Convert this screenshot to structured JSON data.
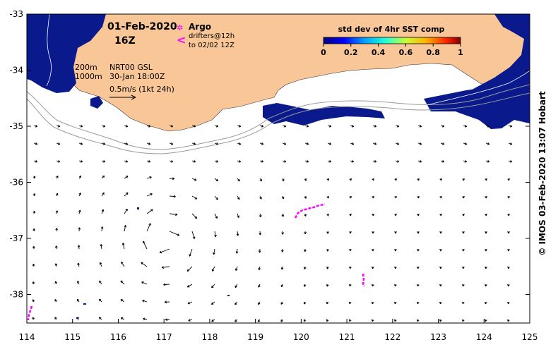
{
  "map": {
    "date_title": "01-Feb-2020",
    "time_title": "16Z",
    "legend": {
      "argo_symbol": "✲",
      "argo_label": "Argo",
      "drifter_symbol": "<",
      "drifter_label_1": "drifters@12h",
      "drifter_label_2": "to 02/02 12Z"
    },
    "contours_200m": "200m",
    "contours_1000m": "1000m",
    "product": "NRT00 GSL",
    "product_time": "30-Jan 18:00Z",
    "scale_text": "0.5m/s (1kt 24h)",
    "colorbar": {
      "title": "std dev of 4hr SST comp",
      "ticks": [
        "0",
        "0.2",
        "0.4",
        "0.6",
        "0.8",
        "1"
      ]
    },
    "x_ticks": [
      "114",
      "115",
      "116",
      "117",
      "118",
      "119",
      "120",
      "121",
      "122",
      "123",
      "124",
      "125"
    ],
    "y_ticks": [
      "-33",
      "-34",
      "-35",
      "-36",
      "-37",
      "-38"
    ],
    "credit": "© IMOS 03-Feb-2020 13:07 Hobart",
    "colors": {
      "land": "#f9c697",
      "sst_low": "#0a1a8c",
      "drifter": "#ff00ff",
      "contour": "#9a9a9a"
    }
  }
}
